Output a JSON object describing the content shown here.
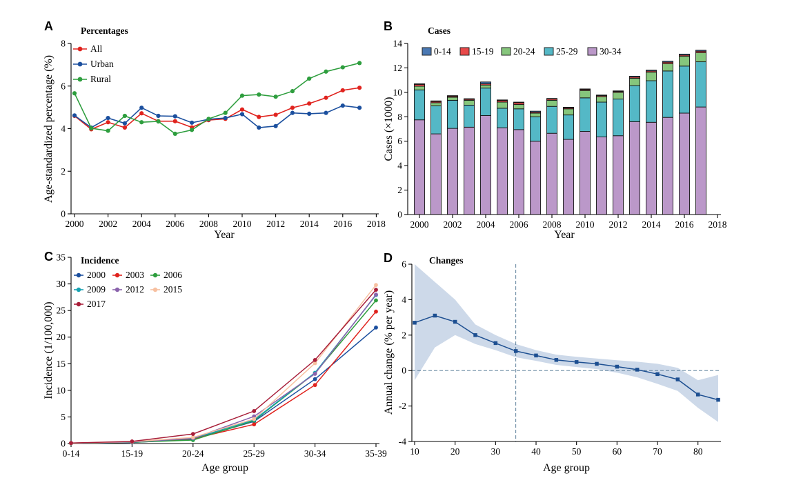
{
  "figure": {
    "background": "#ffffff"
  },
  "chart_data": [
    {
      "panel": "A",
      "panel_label": "A",
      "type": "line",
      "title": "Percentages",
      "xlabel": "Year",
      "ylabel": "Age-standardized percentage (%)",
      "x": [
        2000,
        2001,
        2002,
        2003,
        2004,
        2005,
        2006,
        2007,
        2008,
        2009,
        2010,
        2011,
        2012,
        2013,
        2014,
        2015,
        2016,
        2017
      ],
      "xticks": [
        2000,
        2002,
        2004,
        2006,
        2008,
        2010,
        2012,
        2014,
        2016,
        2018
      ],
      "xlim": [
        2000,
        2018
      ],
      "ylim": [
        0,
        8
      ],
      "yticks": [
        0,
        2,
        4,
        6,
        8
      ],
      "legend_position": "top-left-vertical",
      "series": [
        {
          "name": "All",
          "color": "#e0231e",
          "values": [
            4.6,
            3.97,
            4.3,
            4.05,
            4.72,
            4.35,
            4.35,
            4.06,
            4.4,
            4.46,
            4.9,
            4.55,
            4.65,
            4.98,
            5.18,
            5.45,
            5.8,
            5.92
          ]
        },
        {
          "name": "Urban",
          "color": "#1b4f9e",
          "values": [
            4.62,
            4.05,
            4.5,
            4.25,
            4.98,
            4.6,
            4.58,
            4.28,
            4.44,
            4.5,
            4.68,
            4.05,
            4.12,
            4.74,
            4.7,
            4.74,
            5.08,
            4.98
          ]
        },
        {
          "name": "Rural",
          "color": "#2e9e3e",
          "values": [
            5.66,
            4.02,
            3.9,
            4.6,
            4.3,
            4.34,
            3.76,
            3.94,
            4.46,
            4.74,
            5.55,
            5.6,
            5.5,
            5.76,
            6.35,
            6.68,
            6.88,
            7.08
          ]
        }
      ]
    },
    {
      "panel": "B",
      "panel_label": "B",
      "type": "bar",
      "title": "Cases",
      "xlabel": "Year",
      "ylabel": "Cases (×1000)",
      "x": [
        2000,
        2001,
        2002,
        2003,
        2004,
        2005,
        2006,
        2007,
        2008,
        2009,
        2010,
        2011,
        2012,
        2013,
        2014,
        2015,
        2016,
        2017
      ],
      "xticks": [
        2000,
        2002,
        2004,
        2006,
        2008,
        2010,
        2012,
        2014,
        2016,
        2018
      ],
      "xlim": [
        2000,
        2018
      ],
      "ylim": [
        0,
        14
      ],
      "yticks": [
        0,
        2,
        4,
        6,
        8,
        10,
        12,
        14
      ],
      "legend_position": "top-horizontal",
      "stack_bottom_to_top": [
        "30-34",
        "25-29",
        "20-24",
        "15-19",
        "0-14"
      ],
      "series": [
        {
          "name": "0-14",
          "color": "#4a78b3",
          "values": [
            0.05,
            0.05,
            0.05,
            0.05,
            0.15,
            0.05,
            0.05,
            0.08,
            0.05,
            0.05,
            0.05,
            0.05,
            0.05,
            0.07,
            0.07,
            0.08,
            0.08,
            0.08
          ]
        },
        {
          "name": "15-19",
          "color": "#e8494a",
          "values": [
            0.15,
            0.1,
            0.08,
            0.08,
            0.1,
            0.13,
            0.15,
            0.08,
            0.1,
            0.08,
            0.08,
            0.08,
            0.07,
            0.1,
            0.1,
            0.12,
            0.1,
            0.12
          ]
        },
        {
          "name": "20-24",
          "color": "#86c67c",
          "values": [
            0.3,
            0.25,
            0.25,
            0.4,
            0.25,
            0.5,
            0.35,
            0.3,
            0.5,
            0.5,
            0.6,
            0.45,
            0.55,
            0.6,
            0.7,
            0.6,
            0.8,
            0.75
          ]
        },
        {
          "name": "25-29",
          "color": "#54b8c6",
          "values": [
            2.45,
            2.3,
            2.3,
            1.8,
            2.25,
            1.6,
            1.7,
            2.0,
            2.2,
            2.0,
            2.75,
            2.85,
            3.0,
            2.95,
            3.4,
            3.8,
            3.85,
            3.7
          ]
        },
        {
          "name": "30-34",
          "color": "#bb98c9",
          "values": [
            7.75,
            6.6,
            7.05,
            7.15,
            8.1,
            7.1,
            6.95,
            6.0,
            6.65,
            6.15,
            6.8,
            6.35,
            6.45,
            7.6,
            7.55,
            7.95,
            8.3,
            8.8
          ]
        }
      ]
    },
    {
      "panel": "C",
      "panel_label": "C",
      "type": "line",
      "title": "Incidence",
      "xlabel": "Age group",
      "ylabel": "Incidence (1/100,000)",
      "categories": [
        "0-14",
        "15-19",
        "20-24",
        "25-29",
        "30-34",
        "35-39"
      ],
      "ylim": [
        0,
        35
      ],
      "yticks": [
        0,
        5,
        10,
        15,
        20,
        25,
        30,
        35
      ],
      "legend_position": "top-left-grid-3col",
      "series": [
        {
          "name": "2000",
          "color": "#1b4f9e",
          "values": [
            0.05,
            0.2,
            0.8,
            4.15,
            12.1,
            21.8
          ]
        },
        {
          "name": "2003",
          "color": "#e0231e",
          "values": [
            0.05,
            0.25,
            0.9,
            3.6,
            11.0,
            24.8
          ]
        },
        {
          "name": "2006",
          "color": "#2e9e3e",
          "values": [
            0.05,
            0.25,
            0.65,
            4.3,
            13.25,
            26.9
          ]
        },
        {
          "name": "2009",
          "color": "#16a2b2",
          "values": [
            0.08,
            0.3,
            0.95,
            4.45,
            13.3,
            27.9
          ]
        },
        {
          "name": "2012",
          "color": "#8a63ac",
          "values": [
            0.08,
            0.3,
            1.0,
            5.1,
            13.1,
            28.0
          ]
        },
        {
          "name": "2015",
          "color": "#f7c0a0",
          "values": [
            0.08,
            0.35,
            1.15,
            4.6,
            15.1,
            29.8
          ]
        },
        {
          "name": "2017",
          "color": "#a81e39",
          "values": [
            0.1,
            0.4,
            1.8,
            6.1,
            15.7,
            28.9
          ]
        }
      ]
    },
    {
      "panel": "D",
      "panel_label": "D",
      "type": "line",
      "title": "Changes",
      "xlabel": "Age group",
      "ylabel": "Annual change (% per year)",
      "x": [
        10,
        15,
        20,
        25,
        30,
        35,
        40,
        45,
        50,
        55,
        60,
        65,
        70,
        75,
        80,
        85
      ],
      "xticks": [
        10,
        20,
        30,
        40,
        50,
        60,
        70,
        80
      ],
      "xlim": [
        10,
        85
      ],
      "ylim": [
        -4,
        6
      ],
      "yticks": [
        -4,
        -2,
        0,
        2,
        4,
        6
      ],
      "series": [
        {
          "name": "Annual change",
          "color": "#1d4f91",
          "marker": "square",
          "values": [
            2.7,
            3.1,
            2.75,
            2.0,
            1.55,
            1.1,
            0.85,
            0.6,
            0.48,
            0.38,
            0.22,
            0.05,
            -0.2,
            -0.5,
            -1.35,
            -1.65
          ]
        }
      ],
      "band": {
        "color": "#cdd9e9",
        "upper": [
          6.0,
          5.0,
          4.0,
          2.6,
          2.0,
          1.5,
          1.15,
          0.9,
          0.78,
          0.68,
          0.58,
          0.5,
          0.38,
          0.15,
          -0.55,
          -0.25
        ],
        "lower": [
          -0.55,
          1.3,
          2.0,
          1.5,
          1.15,
          0.75,
          0.55,
          0.32,
          0.2,
          0.08,
          -0.12,
          -0.38,
          -0.75,
          -1.15,
          -2.1,
          -2.9
        ]
      },
      "reference_lines": {
        "horizontal_y": 0,
        "vertical_x": 35,
        "color": "#49708e",
        "style": "dashed"
      }
    }
  ]
}
